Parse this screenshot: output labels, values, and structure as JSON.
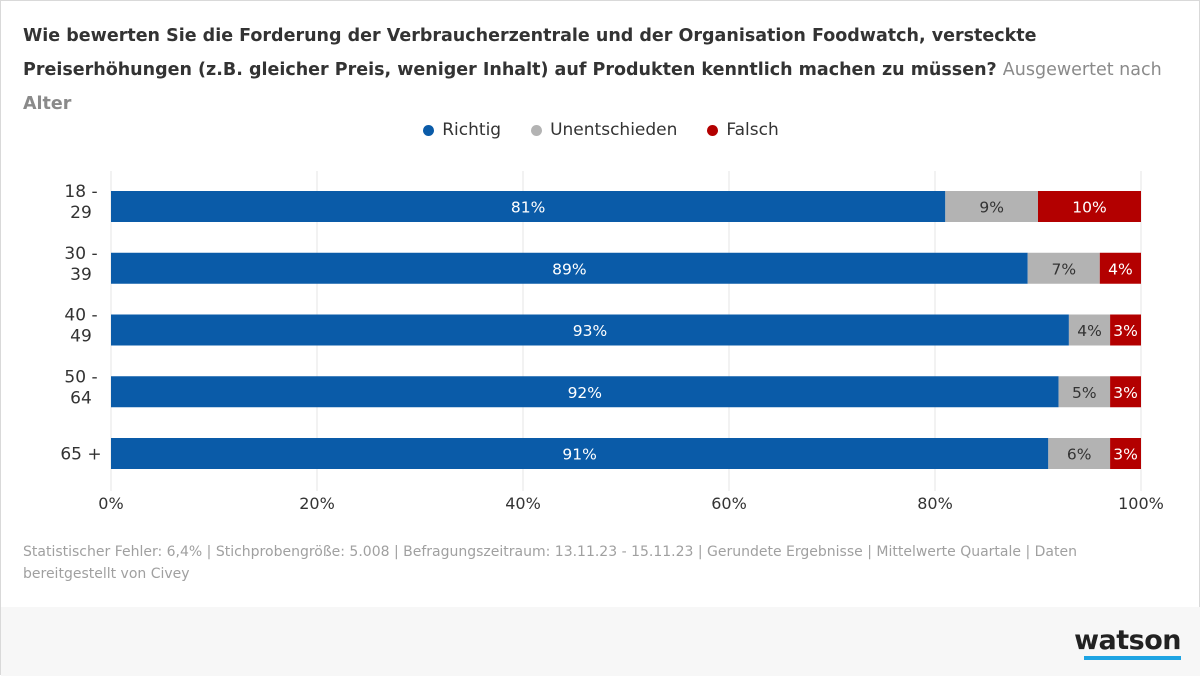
{
  "title": {
    "main": "Wie bewerten Sie die Forderung der Verbraucherzentrale und der Organisation Foodwatch, versteckte Preiserhöhungen (z.B. gleicher Preis, weniger Inhalt) auf Produkten kenntlich machen zu müssen?",
    "subtitle_prefix": "Ausgewertet nach",
    "subtitle_key": "Alter"
  },
  "footnote": "Statistischer Fehler: 6,4% | Stichprobengröße: 5.008 | Befragungszeitraum: 13.11.23 - 15.11.23 | Gerundete Ergebnisse | Mittelwerte Quartale | Daten bereitgestellt von Civey",
  "logo": "watson",
  "colors": {
    "richtig": "#0a5ba8",
    "unentschieden": "#b3b3b3",
    "falsch": "#b30000",
    "grid": "#e6e6e6",
    "logo_accent": "#1ea4e3"
  },
  "chart_data": {
    "type": "bar",
    "orientation": "horizontal",
    "stacked": true,
    "title": "Wie bewerten Sie die Forderung der Verbraucherzentrale und der Organisation Foodwatch, versteckte Preiserhöhungen (z.B. gleicher Preis, weniger Inhalt) auf Produkten kenntlich machen zu müssen?",
    "subtitle": "Ausgewertet nach Alter",
    "categories": [
      [
        "18 -",
        "29"
      ],
      [
        "30 -",
        "39"
      ],
      [
        "40 -",
        "49"
      ],
      [
        "50 -",
        "64"
      ],
      [
        "65 +"
      ]
    ],
    "series": [
      {
        "name": "Richtig",
        "color": "#0a5ba8",
        "label_color": "#ffffff",
        "values": [
          81,
          89,
          93,
          92,
          91
        ]
      },
      {
        "name": "Unentschieden",
        "color": "#b3b3b3",
        "label_color": "#333333",
        "values": [
          9,
          7,
          4,
          5,
          6
        ]
      },
      {
        "name": "Falsch",
        "color": "#b30000",
        "label_color": "#ffffff",
        "values": [
          10,
          4,
          3,
          3,
          3
        ]
      }
    ],
    "xlim": [
      0,
      100
    ],
    "xticks": [
      0,
      20,
      40,
      60,
      80,
      100
    ],
    "xtick_labels": [
      "0%",
      "20%",
      "40%",
      "60%",
      "80%",
      "100%"
    ],
    "value_suffix": "%",
    "grid": true,
    "legend": "top-center"
  }
}
